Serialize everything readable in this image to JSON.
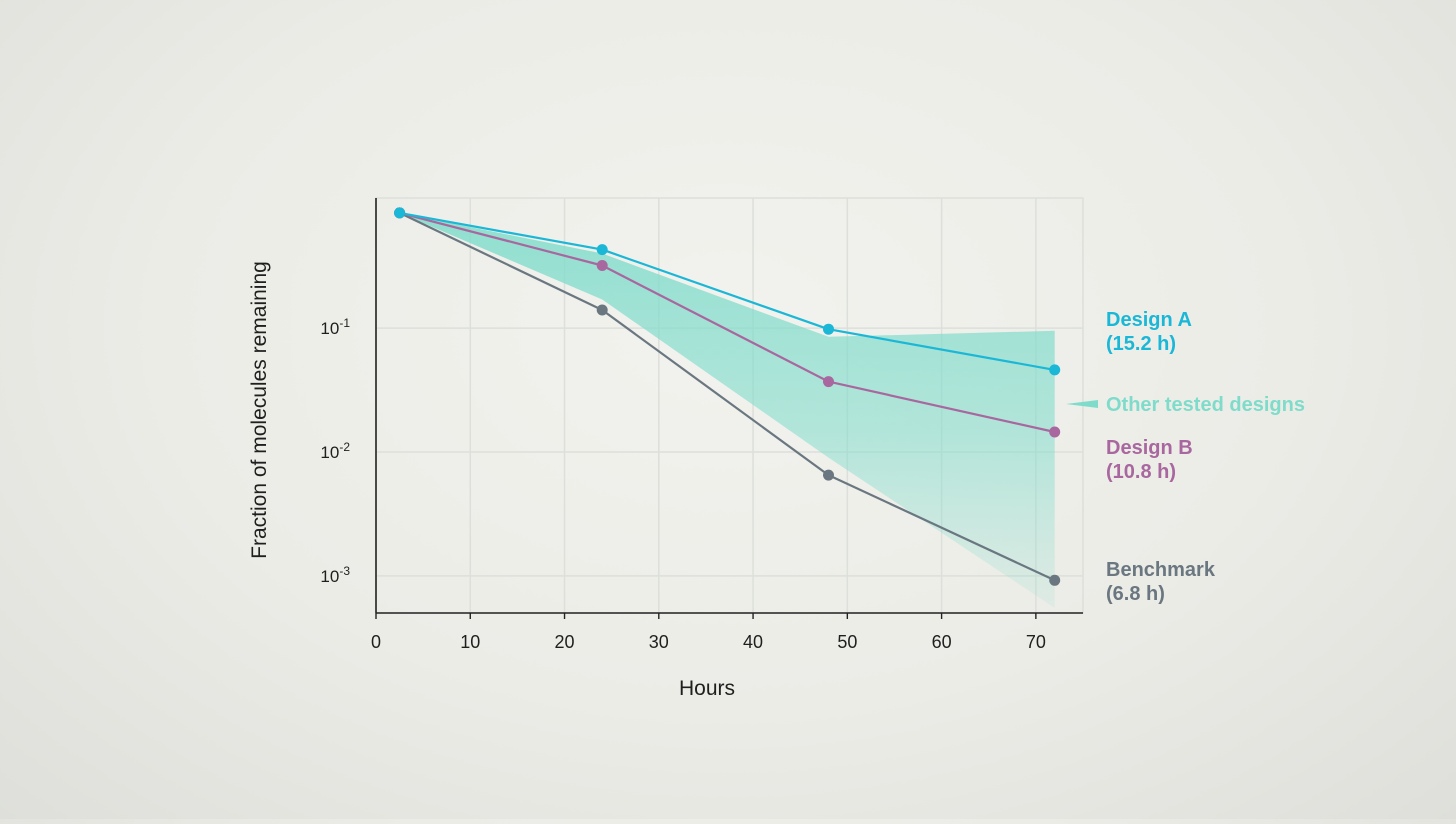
{
  "colors": {
    "design_a": "#1bb7d6",
    "design_b": "#a8679f",
    "benchmark": "#6a7780",
    "other_designs": "#7fdccb",
    "axis": "#222222",
    "grid": "#dcdfda",
    "text": "#1f1f1f"
  },
  "chart_data": {
    "type": "line",
    "title": "",
    "xlabel": "Hours",
    "ylabel": "Fraction of molecules remaining",
    "xlim": [
      0,
      75
    ],
    "ylim_log10": [
      -3.3,
      0.05
    ],
    "y_scale": "log",
    "grid": true,
    "x_ticks": [
      0,
      10,
      20,
      30,
      40,
      50,
      60,
      70
    ],
    "x_tick_labels": [
      "0",
      "10",
      "20",
      "30",
      "40",
      "50",
      "60",
      "70"
    ],
    "y_ticks": [
      {
        "base": "10",
        "exp": "-1",
        "value": 0.1
      },
      {
        "base": "10",
        "exp": "-2",
        "value": 0.01
      },
      {
        "base": "10",
        "exp": "-3",
        "value": 0.001
      }
    ],
    "series": [
      {
        "key": "design_a",
        "name": "Design A",
        "half_life": "(15.2 h)",
        "x": [
          2.5,
          24,
          48,
          72
        ],
        "y": [
          0.85,
          0.43,
          0.098,
          0.046
        ]
      },
      {
        "key": "design_b",
        "name": "Design B",
        "half_life": "(10.8 h)",
        "x": [
          2.5,
          24,
          48,
          72
        ],
        "y": [
          0.85,
          0.32,
          0.037,
          0.0145
        ]
      },
      {
        "key": "benchmark",
        "name": "Benchmark",
        "half_life": "(6.8 h)",
        "x": [
          2.5,
          24,
          48,
          72
        ],
        "y": [
          0.85,
          0.14,
          0.0065,
          0.00092
        ]
      }
    ],
    "other_designs": {
      "label": "Other tested designs",
      "x": [
        2.5,
        24,
        48,
        72
      ],
      "upper": [
        0.85,
        0.4,
        0.085,
        0.095
      ],
      "lower": [
        0.85,
        0.17,
        0.009,
        0.00055
      ]
    }
  }
}
